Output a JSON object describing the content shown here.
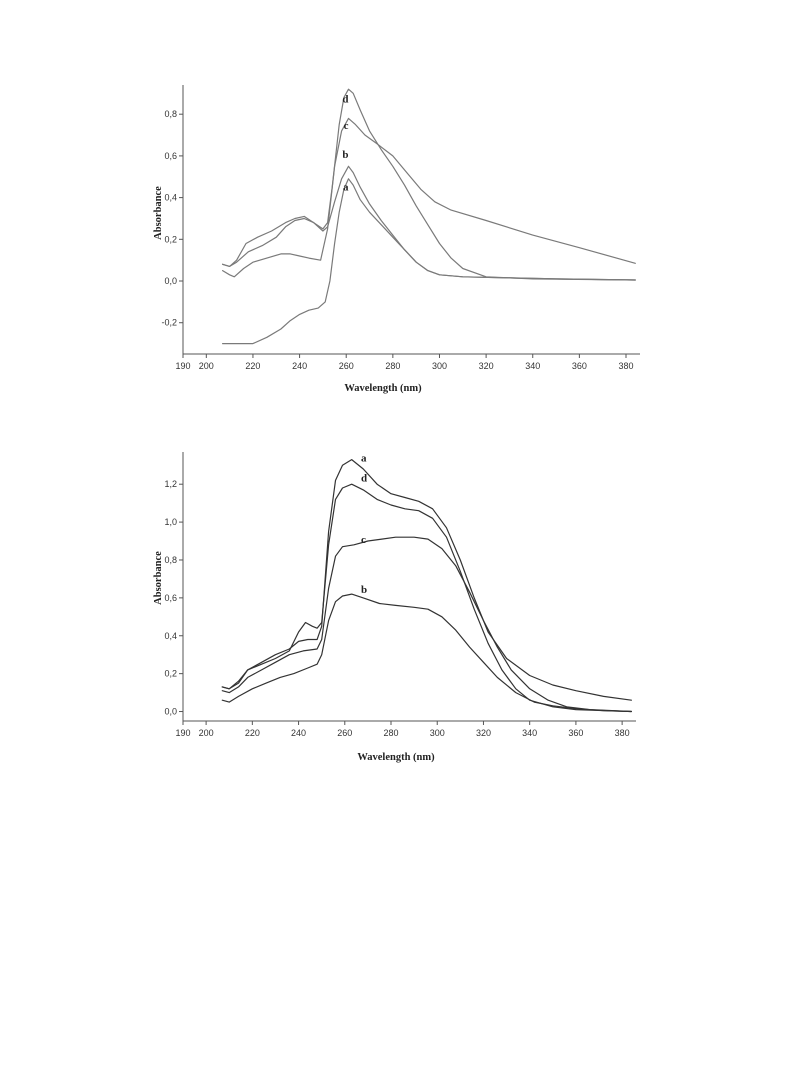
{
  "colors": {
    "line_top": "#7a7a7a",
    "line_bottom": "#333333",
    "axis": "#555555"
  },
  "chart_data": [
    {
      "type": "line",
      "xlabel": "Wavelength (nm)",
      "ylabel": "Absorbance",
      "xlim": [
        190,
        386
      ],
      "ylim": [
        -0.35,
        0.94
      ],
      "x_ticks": [
        190,
        200,
        220,
        240,
        260,
        280,
        300,
        320,
        340,
        360,
        380
      ],
      "x_tick_labels": [
        "190",
        "200",
        "220",
        "240",
        "260",
        "280",
        "300",
        "320",
        "340",
        "360",
        "380"
      ],
      "y_ticks": [
        -0.2,
        0.0,
        0.2,
        0.4,
        0.6,
        0.8
      ],
      "y_tick_labels": [
        "-0,2",
        "0,0",
        "0,2",
        "0,4",
        "0,6",
        "0,8"
      ],
      "grid": false,
      "series": [
        {
          "name": "a",
          "label_at": [
            261,
            0.435
          ],
          "points": [
            [
              207,
              -0.3
            ],
            [
              213,
              -0.3
            ],
            [
              220,
              -0.3
            ],
            [
              226,
              -0.27
            ],
            [
              232,
              -0.23
            ],
            [
              236,
              -0.19
            ],
            [
              240,
              -0.16
            ],
            [
              244,
              -0.14
            ],
            [
              248,
              -0.13
            ],
            [
              251,
              -0.1
            ],
            [
              253,
              0.0
            ],
            [
              255,
              0.18
            ],
            [
              257,
              0.33
            ],
            [
              259,
              0.44
            ],
            [
              261,
              0.49
            ],
            [
              263,
              0.46
            ],
            [
              266,
              0.39
            ],
            [
              270,
              0.33
            ],
            [
              275,
              0.27
            ],
            [
              280,
              0.21
            ],
            [
              285,
              0.15
            ],
            [
              290,
              0.09
            ],
            [
              295,
              0.05
            ],
            [
              300,
              0.03
            ],
            [
              310,
              0.02
            ],
            [
              330,
              0.015
            ],
            [
              350,
              0.01
            ],
            [
              384,
              0.005
            ]
          ]
        },
        {
          "name": "b",
          "label_at": [
            261,
            0.59
          ],
          "points": [
            [
              207,
              0.08
            ],
            [
              210,
              0.07
            ],
            [
              213,
              0.09
            ],
            [
              218,
              0.14
            ],
            [
              224,
              0.17
            ],
            [
              230,
              0.21
            ],
            [
              234,
              0.26
            ],
            [
              238,
              0.29
            ],
            [
              242,
              0.3
            ],
            [
              246,
              0.28
            ],
            [
              250,
              0.24
            ],
            [
              252,
              0.26
            ],
            [
              255,
              0.38
            ],
            [
              258,
              0.49
            ],
            [
              261,
              0.55
            ],
            [
              263,
              0.52
            ],
            [
              266,
              0.45
            ],
            [
              270,
              0.37
            ],
            [
              275,
              0.29
            ],
            [
              280,
              0.22
            ],
            [
              285,
              0.15
            ],
            [
              290,
              0.09
            ],
            [
              295,
              0.05
            ],
            [
              300,
              0.03
            ],
            [
              310,
              0.02
            ],
            [
              330,
              0.015
            ],
            [
              350,
              0.01
            ],
            [
              384,
              0.005
            ]
          ]
        },
        {
          "name": "c",
          "label_at": [
            261,
            0.73
          ],
          "points": [
            [
              207,
              0.05
            ],
            [
              210,
              0.03
            ],
            [
              212,
              0.02
            ],
            [
              216,
              0.06
            ],
            [
              220,
              0.09
            ],
            [
              226,
              0.11
            ],
            [
              232,
              0.13
            ],
            [
              236,
              0.13
            ],
            [
              240,
              0.12
            ],
            [
              244,
              0.11
            ],
            [
              249,
              0.1
            ],
            [
              252,
              0.25
            ],
            [
              255,
              0.55
            ],
            [
              258,
              0.72
            ],
            [
              261,
              0.78
            ],
            [
              264,
              0.75
            ],
            [
              268,
              0.7
            ],
            [
              273,
              0.66
            ],
            [
              280,
              0.6
            ],
            [
              286,
              0.52
            ],
            [
              292,
              0.44
            ],
            [
              298,
              0.38
            ],
            [
              305,
              0.34
            ],
            [
              320,
              0.29
            ],
            [
              340,
              0.22
            ],
            [
              360,
              0.16
            ],
            [
              384,
              0.085
            ]
          ]
        },
        {
          "name": "d",
          "label_at": [
            261,
            0.855
          ],
          "points": [
            [
              207,
              0.08
            ],
            [
              210,
              0.07
            ],
            [
              213,
              0.1
            ],
            [
              217,
              0.18
            ],
            [
              222,
              0.21
            ],
            [
              228,
              0.24
            ],
            [
              234,
              0.28
            ],
            [
              238,
              0.3
            ],
            [
              242,
              0.31
            ],
            [
              246,
              0.28
            ],
            [
              250,
              0.25
            ],
            [
              252,
              0.28
            ],
            [
              254,
              0.45
            ],
            [
              257,
              0.75
            ],
            [
              259,
              0.88
            ],
            [
              261,
              0.92
            ],
            [
              263,
              0.9
            ],
            [
              266,
              0.82
            ],
            [
              270,
              0.72
            ],
            [
              275,
              0.63
            ],
            [
              280,
              0.55
            ],
            [
              285,
              0.46
            ],
            [
              290,
              0.36
            ],
            [
              295,
              0.27
            ],
            [
              300,
              0.18
            ],
            [
              305,
              0.11
            ],
            [
              310,
              0.06
            ],
            [
              320,
              0.02
            ],
            [
              340,
              0.01
            ],
            [
              384,
              0.005
            ]
          ]
        }
      ]
    },
    {
      "type": "line",
      "xlabel": "Wavelength (nm)",
      "ylabel": "Absorbance",
      "xlim": [
        190,
        386
      ],
      "ylim": [
        -0.05,
        1.37
      ],
      "x_ticks": [
        190,
        200,
        220,
        240,
        260,
        280,
        300,
        320,
        340,
        360,
        380
      ],
      "x_tick_labels": [
        "190",
        "200",
        "220",
        "240",
        "260",
        "280",
        "300",
        "320",
        "340",
        "360",
        "380"
      ],
      "y_ticks": [
        0.0,
        0.2,
        0.4,
        0.6,
        0.8,
        1.0,
        1.2
      ],
      "y_tick_labels": [
        "0,0",
        "0,2",
        "0,4",
        "0,6",
        "0,8",
        "1,0",
        "1,2"
      ],
      "grid": false,
      "series": [
        {
          "name": "a",
          "label_at": [
            267,
            1.32
          ],
          "points": [
            [
              207,
              0.13
            ],
            [
              210,
              0.12
            ],
            [
              214,
              0.15
            ],
            [
              218,
              0.22
            ],
            [
              224,
              0.26
            ],
            [
              230,
              0.3
            ],
            [
              236,
              0.33
            ],
            [
              240,
              0.37
            ],
            [
              244,
              0.38
            ],
            [
              248,
              0.38
            ],
            [
              250,
              0.45
            ],
            [
              253,
              0.95
            ],
            [
              256,
              1.22
            ],
            [
              259,
              1.3
            ],
            [
              263,
              1.33
            ],
            [
              268,
              1.28
            ],
            [
              274,
              1.2
            ],
            [
              280,
              1.15
            ],
            [
              286,
              1.13
            ],
            [
              292,
              1.11
            ],
            [
              298,
              1.07
            ],
            [
              304,
              0.97
            ],
            [
              310,
              0.8
            ],
            [
              316,
              0.6
            ],
            [
              322,
              0.42
            ],
            [
              330,
              0.28
            ],
            [
              340,
              0.19
            ],
            [
              350,
              0.14
            ],
            [
              360,
              0.11
            ],
            [
              372,
              0.08
            ],
            [
              384,
              0.06
            ]
          ]
        },
        {
          "name": "b",
          "label_at": [
            267,
            0.625
          ],
          "points": [
            [
              207,
              0.06
            ],
            [
              210,
              0.05
            ],
            [
              214,
              0.08
            ],
            [
              220,
              0.12
            ],
            [
              226,
              0.15
            ],
            [
              232,
              0.18
            ],
            [
              238,
              0.2
            ],
            [
              244,
              0.23
            ],
            [
              248,
              0.25
            ],
            [
              250,
              0.3
            ],
            [
              253,
              0.48
            ],
            [
              256,
              0.58
            ],
            [
              259,
              0.61
            ],
            [
              263,
              0.62
            ],
            [
              268,
              0.6
            ],
            [
              275,
              0.57
            ],
            [
              282,
              0.56
            ],
            [
              290,
              0.55
            ],
            [
              296,
              0.54
            ],
            [
              302,
              0.5
            ],
            [
              308,
              0.43
            ],
            [
              314,
              0.34
            ],
            [
              320,
              0.26
            ],
            [
              326,
              0.18
            ],
            [
              334,
              0.1
            ],
            [
              342,
              0.05
            ],
            [
              350,
              0.03
            ],
            [
              360,
              0.015
            ],
            [
              372,
              0.005
            ],
            [
              384,
              0.0
            ]
          ]
        },
        {
          "name": "c",
          "label_at": [
            267,
            0.89
          ],
          "points": [
            [
              207,
              0.11
            ],
            [
              210,
              0.1
            ],
            [
              214,
              0.13
            ],
            [
              218,
              0.18
            ],
            [
              224,
              0.22
            ],
            [
              230,
              0.26
            ],
            [
              236,
              0.3
            ],
            [
              242,
              0.32
            ],
            [
              248,
              0.33
            ],
            [
              250,
              0.38
            ],
            [
              253,
              0.65
            ],
            [
              256,
              0.82
            ],
            [
              259,
              0.87
            ],
            [
              264,
              0.88
            ],
            [
              270,
              0.9
            ],
            [
              276,
              0.91
            ],
            [
              282,
              0.92
            ],
            [
              290,
              0.92
            ],
            [
              296,
              0.91
            ],
            [
              302,
              0.86
            ],
            [
              308,
              0.77
            ],
            [
              314,
              0.63
            ],
            [
              320,
              0.48
            ],
            [
              326,
              0.34
            ],
            [
              332,
              0.22
            ],
            [
              340,
              0.12
            ],
            [
              348,
              0.06
            ],
            [
              356,
              0.025
            ],
            [
              366,
              0.01
            ],
            [
              384,
              0.0
            ]
          ]
        },
        {
          "name": "d",
          "label_at": [
            267,
            1.215
          ],
          "points": [
            [
              207,
              0.13
            ],
            [
              210,
              0.12
            ],
            [
              214,
              0.16
            ],
            [
              218,
              0.22
            ],
            [
              224,
              0.25
            ],
            [
              230,
              0.28
            ],
            [
              236,
              0.32
            ],
            [
              240,
              0.42
            ],
            [
              243,
              0.47
            ],
            [
              246,
              0.45
            ],
            [
              248,
              0.44
            ],
            [
              250,
              0.47
            ],
            [
              253,
              0.88
            ],
            [
              256,
              1.12
            ],
            [
              259,
              1.18
            ],
            [
              263,
              1.2
            ],
            [
              268,
              1.17
            ],
            [
              274,
              1.12
            ],
            [
              280,
              1.09
            ],
            [
              286,
              1.07
            ],
            [
              292,
              1.06
            ],
            [
              298,
              1.02
            ],
            [
              304,
              0.92
            ],
            [
              310,
              0.74
            ],
            [
              316,
              0.54
            ],
            [
              322,
              0.36
            ],
            [
              328,
              0.22
            ],
            [
              334,
              0.12
            ],
            [
              340,
              0.06
            ],
            [
              350,
              0.025
            ],
            [
              360,
              0.01
            ],
            [
              384,
              0.0
            ]
          ]
        }
      ]
    }
  ]
}
